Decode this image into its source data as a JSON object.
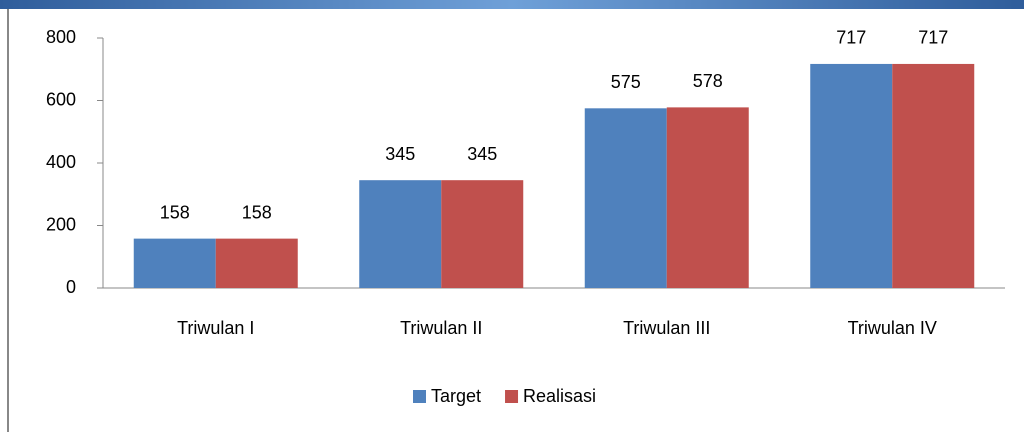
{
  "chart_data": {
    "type": "bar",
    "categories": [
      "Triwulan I",
      "Triwulan II",
      "Triwulan III",
      "Triwulan IV"
    ],
    "series": [
      {
        "name": "Target",
        "color": "#4f81bd",
        "values": [
          158,
          345,
          575,
          717
        ]
      },
      {
        "name": "Realisasi",
        "color": "#c0504d",
        "values": [
          158,
          345,
          578,
          717
        ]
      }
    ],
    "ylim": [
      0,
      800
    ],
    "yticks": [
      0,
      200,
      400,
      600,
      800
    ],
    "grid": false,
    "legend": "bottom"
  }
}
